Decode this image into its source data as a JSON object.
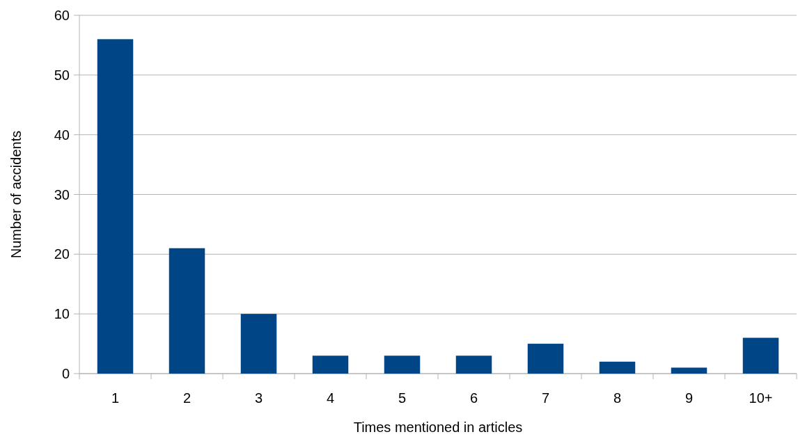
{
  "chart_data": {
    "type": "bar",
    "xlabel": "Times mentioned in articles",
    "ylabel": "Number of accidents",
    "categories": [
      "1",
      "2",
      "3",
      "4",
      "5",
      "6",
      "7",
      "8",
      "9",
      "10+"
    ],
    "values": [
      56,
      21,
      10,
      3,
      3,
      3,
      5,
      2,
      1,
      6
    ],
    "color": "#004586",
    "ylim": [
      0,
      60
    ],
    "yticks": [
      0,
      10,
      20,
      30,
      40,
      50,
      60
    ],
    "grid": "y"
  }
}
